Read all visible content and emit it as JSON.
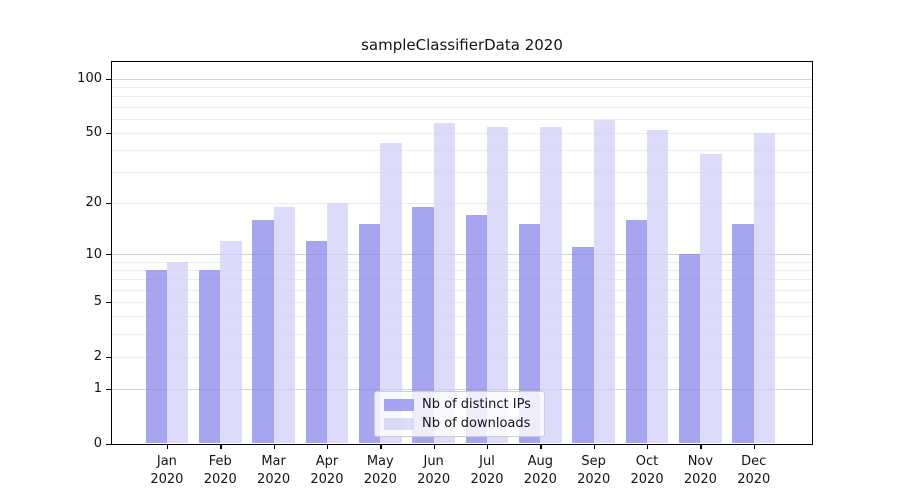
{
  "chart_data": {
    "type": "bar",
    "title": "sampleClassifierData 2020",
    "categories": [
      "Jan",
      "Feb",
      "Mar",
      "Apr",
      "May",
      "Jun",
      "Jul",
      "Aug",
      "Sep",
      "Oct",
      "Nov",
      "Dec"
    ],
    "category_year": "2020",
    "series": [
      {
        "name": "Nb of distinct IPs",
        "color": "#8282ea",
        "opacity": 0.72,
        "values": [
          8,
          8,
          16,
          12,
          15,
          19,
          17,
          15,
          11,
          16,
          10,
          15
        ]
      },
      {
        "name": "Nb of downloads",
        "color": "#cfcff8",
        "opacity": 0.72,
        "values": [
          9,
          12,
          19,
          20,
          44,
          57,
          54,
          54,
          59,
          52,
          38,
          50
        ]
      }
    ],
    "y_axis": {
      "scale": "symlog",
      "tick_labels": [
        "100",
        "50",
        "20",
        "10",
        "5",
        "2",
        "1",
        "0"
      ],
      "tick_values": [
        100,
        50,
        20,
        10,
        5,
        2,
        1,
        0
      ],
      "major_grid_values": [
        1,
        10,
        100
      ],
      "minor_grid_values": [
        2,
        3,
        4,
        5,
        6,
        7,
        8,
        9,
        20,
        30,
        40,
        50,
        60,
        70,
        80,
        90
      ],
      "range": [
        0,
        125
      ],
      "grid": true
    },
    "x_axis": {
      "tick_labels_line1": [
        "Jan",
        "Feb",
        "Mar",
        "Apr",
        "May",
        "Jun",
        "Jul",
        "Aug",
        "Sep",
        "Oct",
        "Nov",
        "Dec"
      ],
      "tick_labels_line2": [
        "2020",
        "2020",
        "2020",
        "2020",
        "2020",
        "2020",
        "2020",
        "2020",
        "2020",
        "2020",
        "2020",
        "2020"
      ]
    },
    "legend": {
      "position": "lower center",
      "entries": [
        {
          "label": "Nb of distinct IPs",
          "color": "#8282ea"
        },
        {
          "label": "Nb of downloads",
          "color": "#cfcff8"
        }
      ]
    },
    "colors": {
      "background": "#ffffff",
      "major_grid": "#d2d2d2",
      "minor_grid": "#ededed",
      "spine": "#000000",
      "text": "#141414"
    }
  }
}
